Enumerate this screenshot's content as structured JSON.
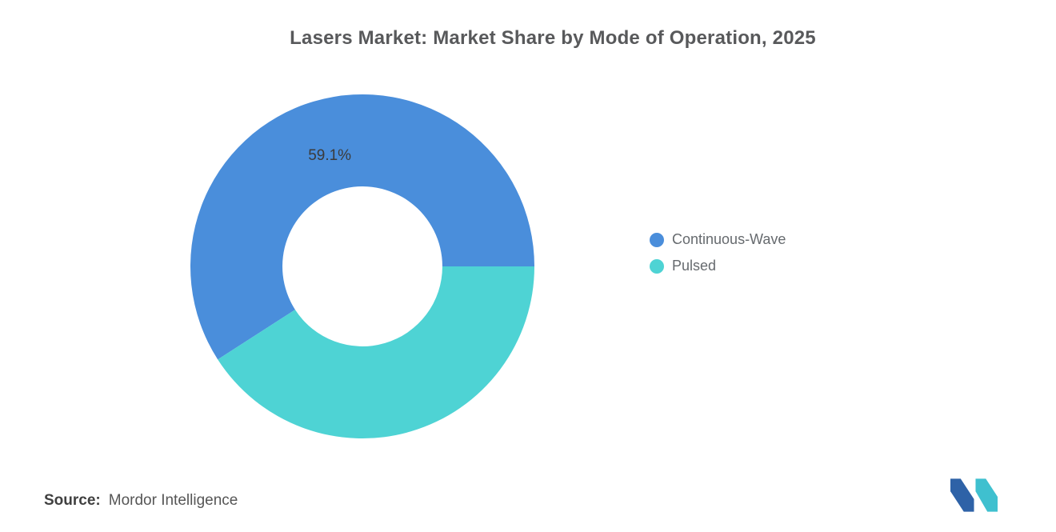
{
  "title": "Lasers Market: Market Share by Mode of Operation, 2025",
  "chart_data": {
    "type": "pie",
    "subtype": "donut",
    "title": "Lasers Market: Market Share by Mode of Operation, 2025",
    "categories": [
      "Continuous-Wave",
      "Pulsed"
    ],
    "values": [
      59.1,
      40.9
    ],
    "colors": [
      "#4a8edb",
      "#4ed3d4"
    ],
    "data_labels": [
      "59.1%",
      ""
    ],
    "start_angle_deg": 0,
    "direction": "ccw",
    "inner_radius_ratio": 0.465,
    "legend_position": "right",
    "grid": false
  },
  "legend": {
    "items": [
      {
        "label": "Continuous-Wave",
        "color": "#4a8edb"
      },
      {
        "label": "Pulsed",
        "color": "#4ed3d4"
      }
    ]
  },
  "source": {
    "prefix": "Source:",
    "text": "Mordor Intelligence"
  },
  "logo": {
    "name": "mordor-intelligence-logo",
    "colors": {
      "blue": "#2e62a7",
      "teal": "#3fc0cf"
    }
  }
}
